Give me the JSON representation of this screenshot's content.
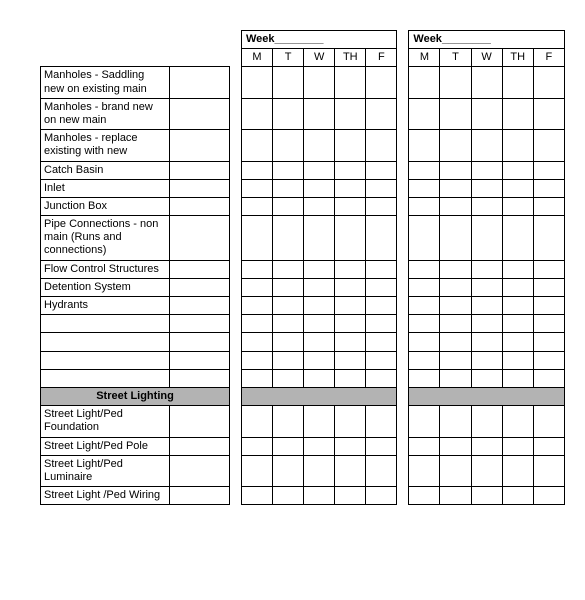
{
  "columns": {
    "desc_width": 108,
    "num_width": 50,
    "day_width": 26,
    "gap_width": 10
  },
  "headers": {
    "week_label": "Week",
    "days": [
      "M",
      "T",
      "W",
      "TH",
      "F"
    ]
  },
  "rows_top": [
    "Manholes - Saddling new on existing main",
    "Manholes - brand new on new main",
    "Manholes - replace existing with new",
    "Catch Basin",
    "Inlet",
    "Junction Box",
    "Pipe Connections - non main (Runs and connections)",
    "Flow Control Structures",
    "Detention System",
    "Hydrants"
  ],
  "blank_row_count": 4,
  "section_title": "Street Lighting",
  "rows_bottom": [
    "Street Light/Ped Foundation",
    "Street Light/Ped Pole",
    "Street Light/Ped Luminaire",
    "Street Light /Ped Wiring"
  ],
  "colors": {
    "section_bg": "#b3b3b3",
    "border": "#000000",
    "bg": "#ffffff"
  }
}
